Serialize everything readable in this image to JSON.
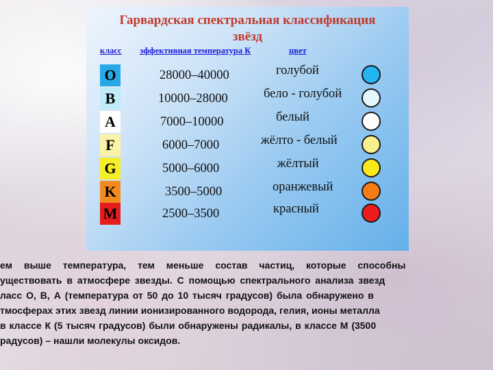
{
  "title_line1": "Гарвардская спектральная классификация",
  "title_line2": "звёзд",
  "header": {
    "col_class": "класс",
    "col_temp": "эффективная температура К",
    "col_color": "цвет"
  },
  "rows": [
    {
      "cls": "O",
      "temp": "28000–40000",
      "color": "голубой",
      "box": "#26a9e6",
      "dot": "#22b5f0"
    },
    {
      "cls": "B",
      "temp": "10000–28000",
      "color": "бело - голубой",
      "box": "#bfeaf8",
      "dot": "#e4f7fd"
    },
    {
      "cls": "A",
      "temp": "7000–10000",
      "color": "белый",
      "box": "#ffffff",
      "dot": "#ffffff"
    },
    {
      "cls": "F",
      "temp": "6000–7000",
      "color": "жёлто - белый",
      "box": "#fbf4a8",
      "dot": "#f8f08c"
    },
    {
      "cls": "G",
      "temp": "5000–6000",
      "color": "жёлтый",
      "box": "#f6ee26",
      "dot": "#f8e81c"
    },
    {
      "cls": "K",
      "temp": "3500–5000",
      "color": "оранжевый",
      "box": "#f28a1e",
      "dot": "#f47c14"
    },
    {
      "cls": "M",
      "temp": "2500–3500",
      "color": "красный",
      "box": "#e51c1c",
      "dot": "#ec1c1c"
    }
  ],
  "body_lines": [
    "ем выше температура, тем меньше состав частиц, которые способны",
    "уществовать в атмосфере звезды. С помощью спектрального анализа звезд",
    "ласс О, В, А (температура от 50 до 10 тысяч градусов) была обнаружено в",
    "тмосферах этих звезд линии ионизированного водорода, гелия, ионы металла",
    " в классе К (5 тысяч градусов) были обнаружены радикалы, в классе М (3500",
    "радусов) – нашли молекулы оксидов."
  ]
}
